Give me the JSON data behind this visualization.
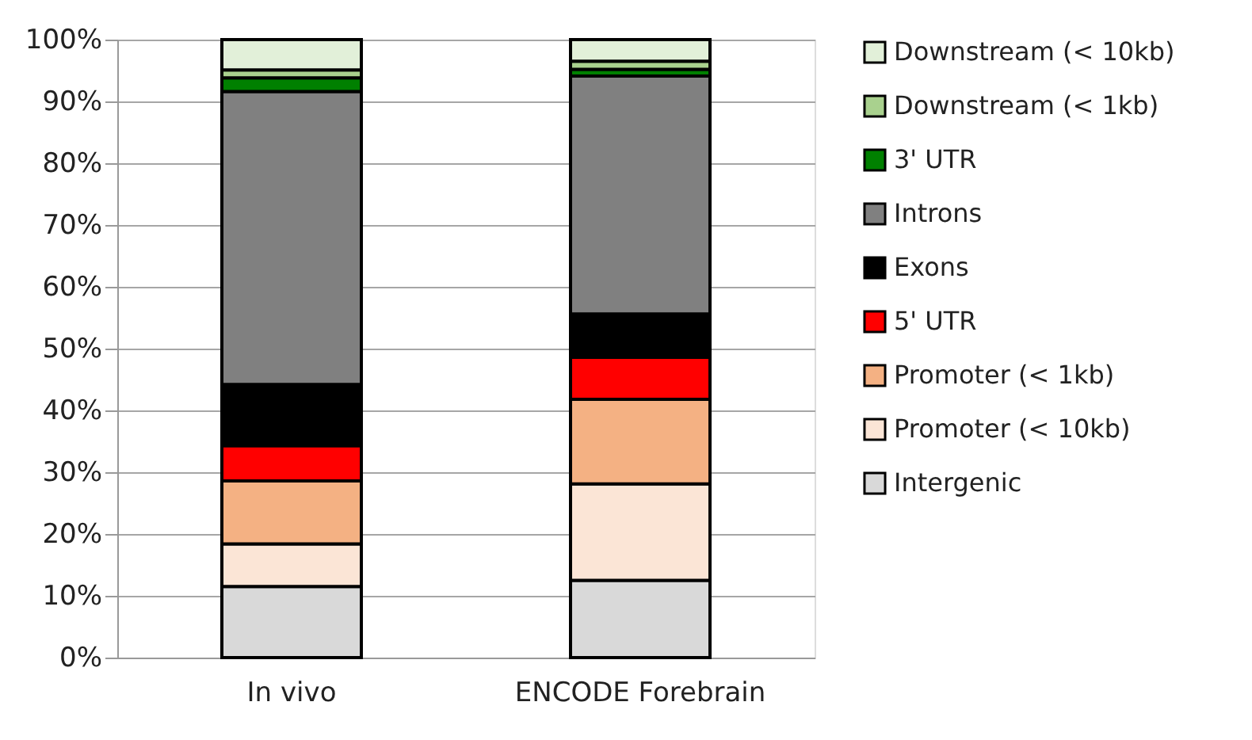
{
  "chart_data": {
    "type": "bar",
    "stacked": true,
    "categories": [
      "In vivo",
      "ENCODE Forebrain"
    ],
    "series": [
      {
        "name": "Intergenic",
        "color": "#d9d9d9",
        "values": [
          11.5,
          12.5
        ]
      },
      {
        "name": "Promoter (< 10kb)",
        "color": "#fbe5d6",
        "values": [
          6.9,
          15.6
        ]
      },
      {
        "name": "Promoter (< 1kb)",
        "color": "#f4b183",
        "values": [
          10.2,
          13.7
        ]
      },
      {
        "name": "5' UTR",
        "color": "#ff0000",
        "values": [
          5.7,
          6.8
        ]
      },
      {
        "name": "Exons",
        "color": "#000000",
        "values": [
          9.9,
          7.0
        ]
      },
      {
        "name": "Introns",
        "color": "#808080",
        "values": [
          47.4,
          38.5
        ]
      },
      {
        "name": "3' UTR",
        "color": "#008000",
        "values": [
          2.2,
          1.1
        ]
      },
      {
        "name": "Downstream (< 1kb)",
        "color": "#a9d18e",
        "values": [
          1.3,
          1.3
        ]
      },
      {
        "name": "Downstream (< 10kb)",
        "color": "#e2f0d9",
        "values": [
          4.9,
          3.5
        ]
      }
    ],
    "ylim": [
      0,
      100
    ],
    "yticks": [
      {
        "value": 0,
        "label": "0%"
      },
      {
        "value": 10,
        "label": "10%"
      },
      {
        "value": 20,
        "label": "20%"
      },
      {
        "value": 30,
        "label": "30%"
      },
      {
        "value": 40,
        "label": "40%"
      },
      {
        "value": 50,
        "label": "50%"
      },
      {
        "value": 60,
        "label": "60%"
      },
      {
        "value": 70,
        "label": "70%"
      },
      {
        "value": 80,
        "label": "80%"
      },
      {
        "value": 90,
        "label": "90%"
      },
      {
        "value": 100,
        "label": "100%"
      }
    ],
    "grid": "y",
    "legend": "right"
  }
}
